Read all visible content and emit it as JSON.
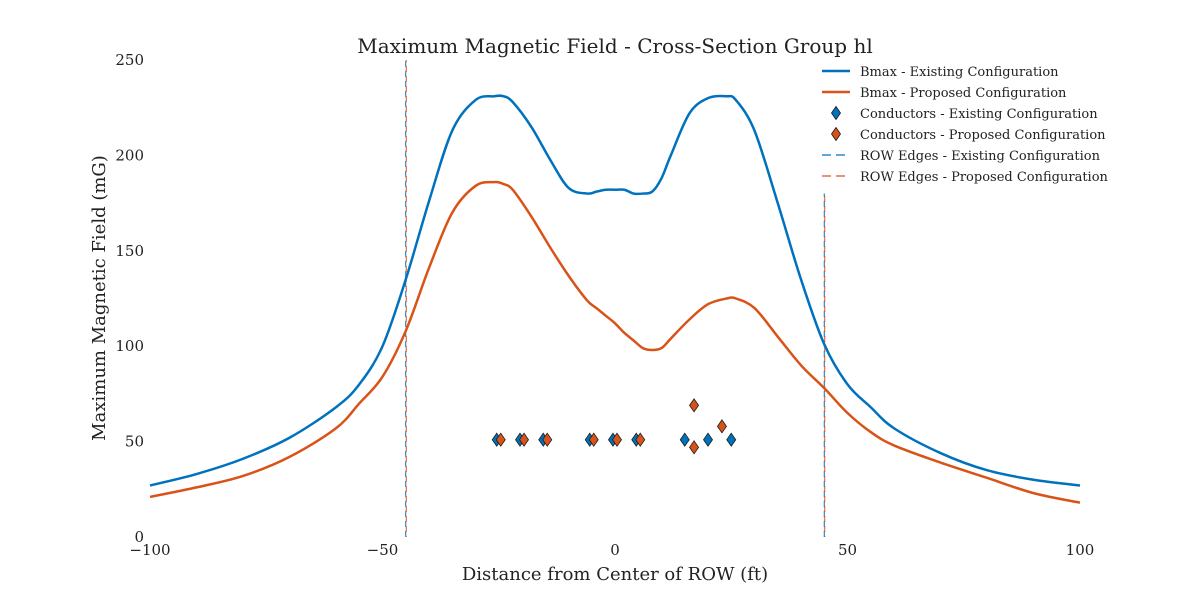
{
  "chart_data": {
    "type": "line",
    "title": "Maximum Magnetic Field - Cross-Section Group hl",
    "xlabel": "Distance from Center of ROW (ft)",
    "ylabel": "Maximum Magnetic Field (mG)",
    "xlim": [
      -100,
      100
    ],
    "ylim": [
      0,
      250
    ],
    "xticks": [
      -100,
      -50,
      0,
      50,
      100
    ],
    "xtick_labels": [
      "−100",
      "−50",
      "0",
      "50",
      "100"
    ],
    "yticks": [
      0,
      50,
      100,
      150,
      200,
      250
    ],
    "grid": false,
    "legend_position": "top-right",
    "colors": {
      "existing": "#0072bd",
      "proposed": "#d95319"
    },
    "series": [
      {
        "name": "Bmax - Existing Configuration",
        "color": "#0072bd",
        "x": [
          -100,
          -90,
          -80,
          -70,
          -60,
          -55,
          -50,
          -45,
          -40,
          -35,
          -30,
          -26,
          -24,
          -22,
          -18,
          -14,
          -10,
          -6,
          -4,
          -2,
          0,
          2,
          4,
          6,
          8,
          10,
          12,
          16,
          20,
          24,
          26,
          30,
          35,
          40,
          45,
          50,
          55,
          60,
          70,
          80,
          90,
          100
        ],
        "y": [
          27,
          33,
          41,
          52,
          68,
          80,
          100,
          135,
          176,
          213,
          229,
          231,
          231,
          228,
          215,
          198,
          183,
          180,
          181,
          182,
          182,
          182,
          180,
          180,
          181,
          188,
          200,
          222,
          230,
          231,
          229,
          213,
          175,
          135,
          101,
          80,
          68,
          57,
          44,
          35,
          30,
          27
        ]
      },
      {
        "name": "Bmax - Proposed Configuration",
        "color": "#d95319",
        "x": [
          -100,
          -90,
          -80,
          -70,
          -60,
          -55,
          -50,
          -45,
          -40,
          -35,
          -30,
          -26,
          -24,
          -22,
          -18,
          -14,
          -10,
          -6,
          -4,
          -2,
          0,
          2,
          4,
          6,
          8,
          10,
          12,
          16,
          20,
          24,
          26,
          30,
          35,
          40,
          45,
          50,
          55,
          60,
          70,
          80,
          90,
          100
        ],
        "y": [
          21,
          26,
          32,
          42,
          57,
          70,
          84,
          108,
          141,
          170,
          184,
          186,
          185,
          182,
          168,
          152,
          137,
          124,
          120,
          116,
          112,
          107,
          103,
          99,
          98,
          99,
          104,
          114,
          122,
          125,
          125,
          120,
          105,
          90,
          78,
          65,
          55,
          48,
          39,
          31,
          23,
          18
        ]
      }
    ],
    "conductors": [
      {
        "name": "Conductors - Existing Configuration",
        "color": "#0072bd",
        "points": [
          [
            -25,
            51
          ],
          [
            -20,
            51
          ],
          [
            -15,
            51
          ],
          [
            -5,
            51
          ],
          [
            0,
            51
          ],
          [
            5,
            51
          ],
          [
            15,
            51
          ],
          [
            20,
            51
          ],
          [
            25,
            51
          ]
        ]
      },
      {
        "name": "Conductors - Proposed Configuration",
        "color": "#d95319",
        "points": [
          [
            -25,
            51
          ],
          [
            -20,
            51
          ],
          [
            -15,
            51
          ],
          [
            -5,
            51
          ],
          [
            0,
            51
          ],
          [
            5,
            51
          ],
          [
            17,
            47
          ],
          [
            17,
            69
          ],
          [
            23,
            58
          ]
        ]
      }
    ],
    "row_edges": [
      {
        "name": "ROW Edges - Existing Configuration",
        "color": "#0072bd",
        "x": [
          -45,
          45
        ],
        "y_top": [
          250,
          180
        ]
      },
      {
        "name": "ROW Edges - Proposed Configuration",
        "color": "#d95319",
        "x": [
          -45,
          45
        ],
        "y_top": [
          250,
          180
        ]
      }
    ]
  }
}
